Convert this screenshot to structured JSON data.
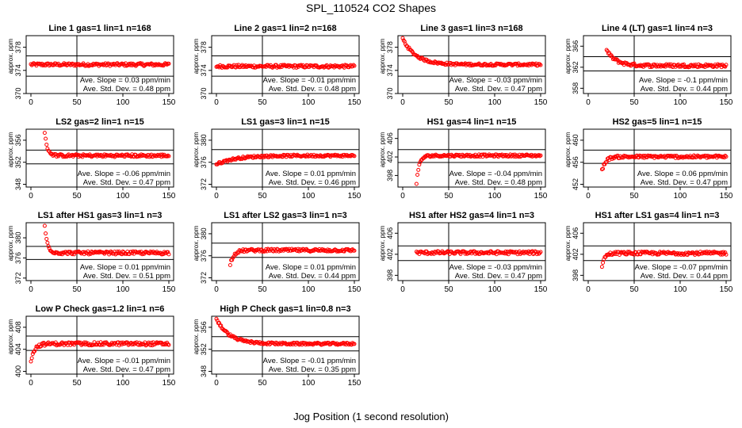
{
  "title": "SPL_110524  CO2 Shapes",
  "xlabel": "Jog Position (1 second resolution)",
  "ylabel": "approx. ppm",
  "slope_prefix": "Ave. Slope =",
  "slope_unit": "ppm/min",
  "std_prefix": "Ave. Std. Dev. =",
  "std_unit": "ppm",
  "colors": {
    "points": "#ff0000",
    "axes": "#000000"
  },
  "chart_data": [
    {
      "type": "scatter",
      "title": "Line 1 gas=1 lin=1 n=168",
      "xlim": [
        0,
        150
      ],
      "xticks": [
        0,
        50,
        100,
        150
      ],
      "ylim": [
        370,
        380
      ],
      "yticks": [
        370,
        374,
        378
      ],
      "hlines": [
        373.0,
        376.5
      ],
      "vline": 50,
      "slope": "0.03",
      "stddev": "0.48",
      "shape": {
        "start": 0,
        "base": 375,
        "noise": 0.25,
        "level": 375,
        "trend": 0
      }
    },
    {
      "type": "scatter",
      "title": "Line 2 gas=1 lin=2 n=168",
      "xlim": [
        0,
        150
      ],
      "xticks": [
        0,
        50,
        100,
        150
      ],
      "ylim": [
        370,
        380
      ],
      "yticks": [
        370,
        374,
        378
      ],
      "hlines": [
        373.0,
        376.5
      ],
      "vline": 50,
      "slope": "-0.01",
      "stddev": "0.48",
      "shape": {
        "start": 0,
        "base": 374.7,
        "noise": 0.25,
        "level": 374.7,
        "trend": 0
      }
    },
    {
      "type": "scatter",
      "title": "Line 3 gas=1 lin=3 n=168",
      "xlim": [
        0,
        150
      ],
      "xticks": [
        0,
        50,
        100,
        150
      ],
      "ylim": [
        370,
        380
      ],
      "yticks": [
        370,
        374,
        378
      ],
      "hlines": [
        373.0,
        376.5
      ],
      "vline": 50,
      "slope": "-0.03",
      "stddev": "0.47",
      "shape": {
        "start": 0,
        "base": 375,
        "noise": 0.2,
        "level": 379.5,
        "trend": -1,
        "decay": 14
      }
    },
    {
      "type": "scatter",
      "title": "Line 4 (LT) gas=1 lin=4 n=3",
      "xlim": [
        0,
        150
      ],
      "xticks": [
        0,
        50,
        100,
        150
      ],
      "ylim": [
        357,
        368
      ],
      "yticks": [
        358,
        362,
        366
      ],
      "hlines": [
        361.3,
        364.0
      ],
      "vline": 50,
      "slope": "-0.1",
      "stddev": "0.44",
      "shape": {
        "start": 20,
        "base": 362.3,
        "noise": 0.3,
        "level": 365.2,
        "trend": -1,
        "decay": 10
      }
    },
    {
      "type": "scatter",
      "title": "LS2 gas=2 lin=1 n=15",
      "xlim": [
        0,
        150
      ],
      "xticks": [
        0,
        50,
        100,
        150
      ],
      "ylim": [
        347.5,
        358
      ],
      "yticks": [
        348,
        352,
        356
      ],
      "hlines": [
        351.7,
        354.2
      ],
      "vline": 50,
      "slope": "-0.06",
      "stddev": "0.47",
      "shape": {
        "start": 15,
        "base": 353.2,
        "noise": 0.25,
        "level": 357.2,
        "trend": -1,
        "decay": 3
      }
    },
    {
      "type": "scatter",
      "title": "LS1 gas=3 lin=1 n=15",
      "xlim": [
        0,
        150
      ],
      "xticks": [
        0,
        50,
        100,
        150
      ],
      "ylim": [
        371.5,
        382
      ],
      "yticks": [
        372,
        376,
        380
      ],
      "hlines": [
        375.7,
        378.3
      ],
      "vline": 50,
      "slope": "0.01",
      "stddev": "0.46",
      "shape": {
        "start": 0,
        "base": 377.2,
        "noise": 0.2,
        "level": 375.6,
        "trend": 1,
        "decay": 20
      }
    },
    {
      "type": "scatter",
      "title": "HS1 gas=4 lin=1 n=15",
      "xlim": [
        0,
        150
      ],
      "xticks": [
        0,
        50,
        100,
        150
      ],
      "ylim": [
        395.5,
        408
      ],
      "yticks": [
        398,
        402,
        406
      ],
      "hlines": [
        400.8,
        403.6
      ],
      "vline": 50,
      "slope": "-0.04",
      "stddev": "0.48",
      "shape": {
        "start": 15,
        "base": 402.3,
        "noise": 0.25,
        "level": 396.4,
        "trend": 1,
        "decay": 3
      }
    },
    {
      "type": "scatter",
      "title": "HS2 gas=5 lin=1 n=15",
      "xlim": [
        0,
        150
      ],
      "xticks": [
        0,
        50,
        100,
        150
      ],
      "ylim": [
        451.5,
        462
      ],
      "yticks": [
        452,
        456,
        460
      ],
      "hlines": [
        455.8,
        458.2
      ],
      "vline": 50,
      "slope": "0.06",
      "stddev": "0.47",
      "shape": {
        "start": 15,
        "base": 457.0,
        "noise": 0.25,
        "level": 454.5,
        "trend": 1,
        "decay": 4
      }
    },
    {
      "type": "scatter",
      "title": "LS1 after HS1 gas=3 lin=1 n=3",
      "xlim": [
        0,
        150
      ],
      "xticks": [
        0,
        50,
        100,
        150
      ],
      "ylim": [
        371.5,
        383
      ],
      "yticks": [
        372,
        376,
        380
      ],
      "hlines": [
        375.7,
        378.3
      ],
      "vline": 50,
      "slope": "0.01",
      "stddev": "0.51",
      "shape": {
        "start": 15,
        "base": 377.0,
        "noise": 0.3,
        "level": 382.3,
        "trend": -1,
        "decay": 3
      }
    },
    {
      "type": "scatter",
      "title": "LS1 after LS2 gas=3 lin=1 n=3",
      "xlim": [
        0,
        150
      ],
      "xticks": [
        0,
        50,
        100,
        150
      ],
      "ylim": [
        371.5,
        382
      ],
      "yticks": [
        372,
        376,
        380
      ],
      "hlines": [
        375.7,
        378.3
      ],
      "vline": 50,
      "slope": "0.01",
      "stddev": "0.44",
      "shape": {
        "start": 15,
        "base": 377.0,
        "noise": 0.25,
        "level": 374.5,
        "trend": 1,
        "decay": 4
      }
    },
    {
      "type": "scatter",
      "title": "HS1 after HS2 gas=4 lin=1 n=3",
      "xlim": [
        0,
        150
      ],
      "xticks": [
        0,
        50,
        100,
        150
      ],
      "ylim": [
        397,
        408
      ],
      "yticks": [
        398,
        402,
        406
      ],
      "hlines": [
        400.8,
        403.6
      ],
      "vline": 50,
      "slope": "-0.03",
      "stddev": "0.47",
      "shape": {
        "start": 15,
        "base": 402.3,
        "noise": 0.3,
        "level": 402.6,
        "trend": 0
      }
    },
    {
      "type": "scatter",
      "title": "HS1 after LS1 gas=4 lin=1 n=3",
      "xlim": [
        0,
        150
      ],
      "xticks": [
        0,
        50,
        100,
        150
      ],
      "ylim": [
        397,
        408
      ],
      "yticks": [
        398,
        402,
        406
      ],
      "hlines": [
        400.8,
        403.6
      ],
      "vline": 50,
      "slope": "-0.07",
      "stddev": "0.44",
      "shape": {
        "start": 15,
        "base": 402.2,
        "noise": 0.3,
        "level": 399.8,
        "trend": 1,
        "decay": 3
      }
    },
    {
      "type": "scatter",
      "title": "Low P Check gas=1.2 lin=1 n=6",
      "xlim": [
        0,
        150
      ],
      "xticks": [
        0,
        50,
        100,
        150
      ],
      "ylim": [
        399.5,
        410
      ],
      "yticks": [
        400,
        404,
        408
      ],
      "hlines": [
        403.8,
        406.4
      ],
      "vline": 50,
      "slope": "-0.01",
      "stddev": "0.47",
      "shape": {
        "start": 0,
        "base": 405.0,
        "noise": 0.3,
        "level": 402.0,
        "trend": 1,
        "decay": 4
      }
    },
    {
      "type": "scatter",
      "title": "High P Check gas=1 lin=0.8 n=3",
      "xlim": [
        0,
        150
      ],
      "xticks": [
        0,
        50,
        100,
        150
      ],
      "ylim": [
        347.5,
        358
      ],
      "yticks": [
        348,
        352,
        356
      ],
      "hlines": [
        351.7,
        354.3
      ],
      "vline": 50,
      "slope": "-0.01",
      "stddev": "0.35",
      "shape": {
        "start": 0,
        "base": 353.0,
        "noise": 0.2,
        "level": 357.5,
        "trend": -1,
        "decay": 14
      }
    }
  ]
}
